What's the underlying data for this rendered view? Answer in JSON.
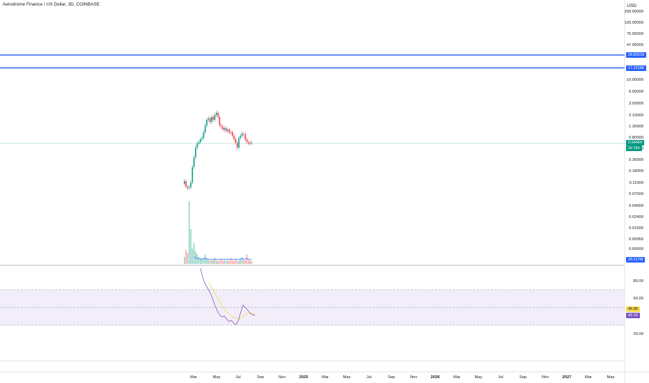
{
  "symbol": {
    "title": "Aerodrome Finance / US Dollar, 3D, COINBASE"
  },
  "currency": "USD",
  "price_ticks": [
    "200.00000",
    "120.00000",
    "75.00000",
    "47.00000",
    "29.00000",
    "17.00000",
    "10.00000",
    "6.00000",
    "3.50000",
    "2.10000",
    "1.30000",
    "0.80000",
    "0.50000",
    "0.30000",
    "0.18000",
    "0.11000",
    "0.07000",
    "0.04000",
    "0.02400",
    "0.01500",
    "0.00950",
    "0.00600"
  ],
  "tags": {
    "level_upper": "28.80318",
    "level_lower": "17.22186",
    "last_price": "0.64464",
    "countdown": "2d 16h",
    "volume": "26.517M",
    "rsi_ma": "45.88",
    "rsi": "42.16"
  },
  "rsi_ticks": [
    "80.00",
    "60.00",
    "20.00"
  ],
  "time_axis": [
    {
      "label": "Mar",
      "year": false
    },
    {
      "label": "May",
      "year": false
    },
    {
      "label": "Jul",
      "year": false
    },
    {
      "label": "Sep",
      "year": false
    },
    {
      "label": "Nov",
      "year": false
    },
    {
      "label": "2025",
      "year": true
    },
    {
      "label": "Mar",
      "year": false
    },
    {
      "label": "May",
      "year": false
    },
    {
      "label": "Jul",
      "year": false
    },
    {
      "label": "Sep",
      "year": false
    },
    {
      "label": "Nov",
      "year": false
    },
    {
      "label": "2026",
      "year": true
    },
    {
      "label": "Mar",
      "year": false
    },
    {
      "label": "May",
      "year": false
    },
    {
      "label": "Jul",
      "year": false
    },
    {
      "label": "Sep",
      "year": false
    },
    {
      "label": "Nov",
      "year": false
    },
    {
      "label": "2027",
      "year": true
    },
    {
      "label": "Mar",
      "year": false
    },
    {
      "label": "May",
      "year": false
    }
  ],
  "colors": {
    "up": "#089981",
    "down": "#f23645",
    "level": "#2962ff",
    "rsi": "#7e57c2",
    "rsi_ma": "#f5d94a",
    "rsi_band": "#ede7f6",
    "volume_ma": "#2962ff",
    "grid": "#e0e3eb"
  }
}
